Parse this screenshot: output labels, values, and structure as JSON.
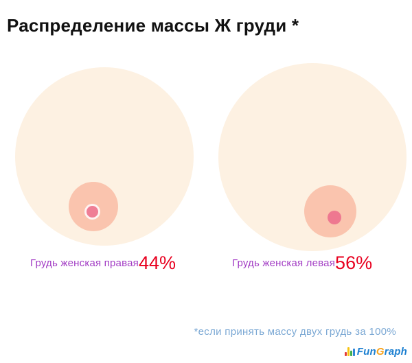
{
  "title": "Распределение массы Ж груди *",
  "chart_data": {
    "type": "pie",
    "variant": "two-circle-area-infographic",
    "title": "Распределение массы Ж груди *",
    "categories": [
      "Грудь женская правая",
      "Грудь женская левая"
    ],
    "values": [
      44,
      56
    ],
    "value_labels": [
      "44%",
      "56%"
    ],
    "units": "%",
    "footnote": "*если принять массу двух грудь за 100%",
    "legend_position": "below-each-circle",
    "grid": false
  },
  "left": {
    "label": "Грудь женская правая",
    "value": "44%"
  },
  "right": {
    "label": "Грудь женская левая",
    "value": "56%"
  },
  "footnote": "*если принять массу двух грудь за 100%",
  "logo": {
    "part1": "Fun",
    "part2": "G",
    "part3": "raph"
  },
  "colors": {
    "background": "#ffffff",
    "title_text": "#111111",
    "breast_fill": "#fdf1e2",
    "areola_fill": "#fac4ae",
    "nipple_fill": "#ef7e96",
    "nipple_ring": "#fff3f2",
    "category_label": "#a23cc4",
    "percent_value": "#e8001f",
    "footnote_text": "#7ba8d4",
    "logo_blue": "#1b7fd0",
    "logo_orange": "#f7a21b"
  }
}
